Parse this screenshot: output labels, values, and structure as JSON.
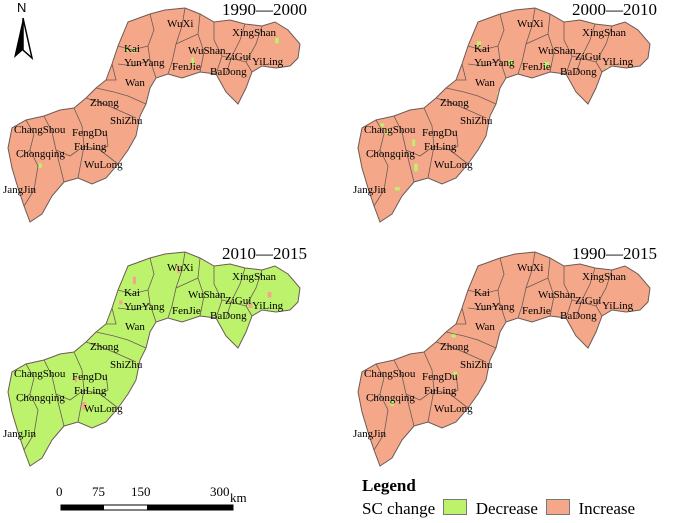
{
  "colors": {
    "decrease": "#bdf26d",
    "increase": "#f5a889",
    "boundary": "#6b5a55"
  },
  "north": {
    "label": "N"
  },
  "panels": [
    {
      "period": "1990—2000",
      "dominant": "increase",
      "decrease_share": 0.03
    },
    {
      "period": "2000—2010",
      "dominant": "increase",
      "decrease_share": 0.08
    },
    {
      "period": "2010—2015",
      "dominant": "decrease",
      "decrease_share": 0.94
    },
    {
      "period": "1990—2015",
      "dominant": "increase",
      "decrease_share": 0.04
    }
  ],
  "counties": [
    "WuXi",
    "XingShan",
    "Kai",
    "WuShan",
    "ZiGui",
    "YunYang",
    "FenJie",
    "YiLing",
    "BaDong",
    "Wan",
    "Zhong",
    "ShiZhu",
    "ChangShou",
    "FengDu",
    "Chongqing",
    "FuLing",
    "WuLong",
    "JangJin"
  ],
  "scalebar": {
    "ticks": [
      "0",
      "75",
      "150",
      "300"
    ],
    "unit": "km"
  },
  "legend": {
    "title": "Legend",
    "field": "SC change",
    "items": [
      {
        "label": "Decrease",
        "class": "decrease"
      },
      {
        "label": "Increase",
        "class": "increase"
      }
    ]
  }
}
